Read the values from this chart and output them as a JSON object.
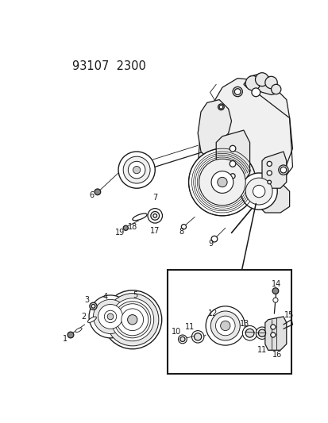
{
  "title": "93107  2300",
  "bg_color": "#ffffff",
  "line_color": "#1a1a1a",
  "fig_width": 4.14,
  "fig_height": 5.33,
  "dpi": 100,
  "label_fontsize": 7.0,
  "title_fontsize": 10.5
}
